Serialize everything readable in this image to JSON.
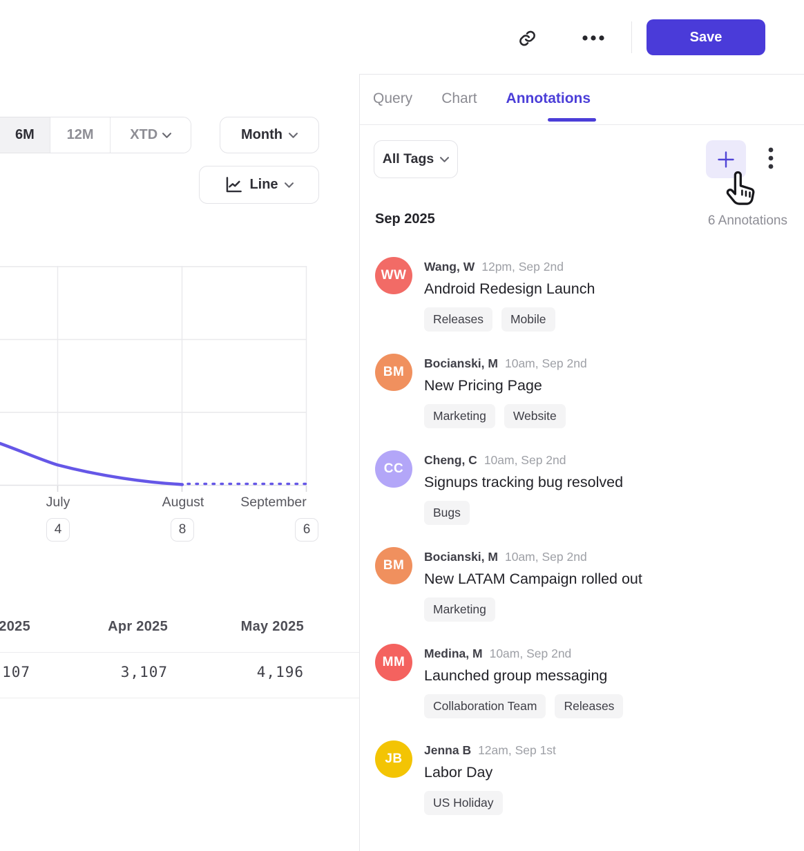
{
  "topbar": {
    "save_label": "Save",
    "icons": {
      "link": "link-icon",
      "more": "ellipsis-icon"
    }
  },
  "tabs": [
    {
      "label": "Query",
      "active": false
    },
    {
      "label": "Chart",
      "active": false
    },
    {
      "label": "Annotations",
      "active": true
    }
  ],
  "left": {
    "range_options": [
      {
        "label": "6M",
        "active": true,
        "has_chevron": false
      },
      {
        "label": "12M",
        "active": false,
        "has_chevron": false
      },
      {
        "label": "XTD",
        "active": false,
        "has_chevron": true
      }
    ],
    "granularity_button": "Month",
    "chart_type_button": "Line",
    "table": {
      "headers": [
        "2025",
        "Apr 2025",
        "May 2025"
      ],
      "values": [
        "107",
        "3,107",
        "4,196"
      ]
    }
  },
  "chart_data": {
    "type": "line",
    "x": [
      "July",
      "August",
      "September"
    ],
    "x_tick_annotation_counts": [
      4,
      8,
      6
    ],
    "series": [
      {
        "name": "",
        "style": "solid through August, dotted projection to September",
        "values_gridline_units": [
          {
            "x": "left edge (cropped, ~June)",
            "y": 0.57
          },
          {
            "x": "July",
            "y": 0.27
          },
          {
            "x": "August",
            "y": 0.02
          },
          {
            "x": "September (dotted)",
            "y": 0.01
          }
        ]
      }
    ],
    "y_tick_labels_visible": false,
    "grid": true,
    "line_color": "#6557E7",
    "summary_table": {
      "headers": [
        "2025",
        "Apr 2025",
        "May 2025"
      ],
      "values": [
        "107",
        "3,107",
        "4,196"
      ]
    }
  },
  "annotations_panel": {
    "filter_label": "All Tags",
    "toolbar_icons": {
      "add": "plus-icon",
      "menu": "kebab-icon"
    },
    "section": {
      "title": "Sep 2025",
      "count_label": "6 Annotations"
    },
    "items": [
      {
        "initials": "WW",
        "avatar_color": "#F26B66",
        "author": "Wang, W",
        "timestamp": "12pm, Sep 2nd",
        "title": "Android Redesign Launch",
        "tags": [
          "Releases",
          "Mobile"
        ]
      },
      {
        "initials": "BM",
        "avatar_color": "#F0905E",
        "author": "Bocianski, M",
        "timestamp": "10am, Sep 2nd",
        "title": "New Pricing Page",
        "tags": [
          "Marketing",
          "Website"
        ]
      },
      {
        "initials": "CC",
        "avatar_color": "#B3A6F8",
        "author": "Cheng, C",
        "timestamp": "10am, Sep 2nd",
        "title": "Signups tracking bug resolved",
        "tags": [
          "Bugs"
        ]
      },
      {
        "initials": "BM",
        "avatar_color": "#F0905E",
        "author": "Bocianski, M",
        "timestamp": "10am, Sep 2nd",
        "title": "New LATAM Campaign rolled out",
        "tags": [
          "Marketing"
        ]
      },
      {
        "initials": "MM",
        "avatar_color": "#F4625F",
        "author": "Medina, M",
        "timestamp": "10am, Sep 2nd",
        "title": "Launched group messaging",
        "tags": [
          "Collaboration Team",
          "Releases"
        ]
      },
      {
        "initials": "JB",
        "avatar_color": "#F3C404",
        "author": "Jenna B",
        "timestamp": "12am, Sep 1st",
        "title": "Labor Day",
        "tags": [
          "US Holiday"
        ]
      }
    ]
  },
  "colors": {
    "accent_purple": "#4A3BD9",
    "tab_active": "#4B3ED8",
    "chart_line": "#6557E7",
    "tag_chip_bg": "#F4F4F5"
  }
}
